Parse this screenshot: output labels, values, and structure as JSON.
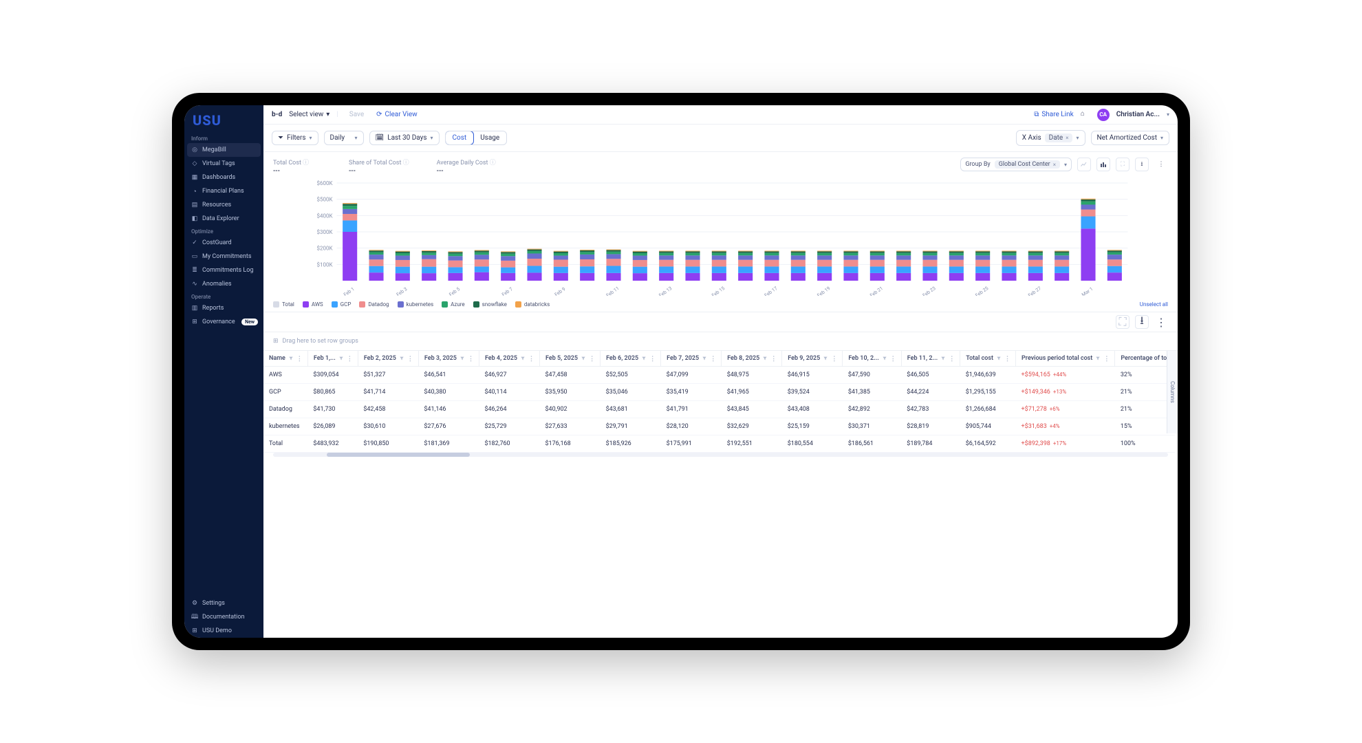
{
  "brand": "USU",
  "topbar": {
    "select_view": "Select view",
    "save": "Save",
    "clear_view": "Clear View",
    "share_link": "Share Link",
    "user_initials": "CA",
    "user_name": "Christian Ac..."
  },
  "filters": {
    "filters_label": "Filters",
    "granularity": "Daily",
    "date_range": "Last 30 Days",
    "seg_cost": "Cost",
    "seg_usage": "Usage",
    "xaxis_label": "X Axis",
    "xaxis_value": "Date",
    "yaxis_value": "Net Amortized Cost"
  },
  "metrics": {
    "total_cost_label": "Total Cost",
    "total_cost_value": "---",
    "share_label": "Share of Total Cost",
    "share_value": "---",
    "avg_label": "Average Daily Cost",
    "avg_value": "---",
    "group_by_label": "Group By",
    "group_by_value": "Global Cost Center"
  },
  "chart": {
    "type": "stacked-bar",
    "y_ticks": [
      "$600K",
      "$500K",
      "$400K",
      "$300K",
      "$200K",
      "$100K"
    ],
    "y_max": 600,
    "bar_width": 0.55,
    "background_color": "#ffffff",
    "grid_color": "#eef1f7",
    "axis_label_color": "#8892ad",
    "axis_fontsize": 8,
    "series": [
      {
        "key": "Total",
        "color": "#d7dbe6"
      },
      {
        "key": "AWS",
        "color": "#8e3ef2"
      },
      {
        "key": "GCP",
        "color": "#3aa3ff"
      },
      {
        "key": "Datadog",
        "color": "#f08d8d"
      },
      {
        "key": "kubernetes",
        "color": "#6a6fcf"
      },
      {
        "key": "Azure",
        "color": "#2aa36b"
      },
      {
        "key": "snowflake",
        "color": "#1e6b4b"
      },
      {
        "key": "databricks",
        "color": "#f2a24a"
      }
    ],
    "x_labels": [
      "Feb 1",
      "",
      "Feb 3",
      "",
      "Feb 5",
      "",
      "Feb 7",
      "",
      "Feb 9",
      "",
      "Feb 11",
      "",
      "Feb 13",
      "",
      "Feb 15",
      "",
      "Feb 17",
      "",
      "Feb 19",
      "",
      "Feb 21",
      "",
      "Feb 23",
      "",
      "Feb 25",
      "",
      "Feb 27",
      "",
      "Mar 1",
      ""
    ],
    "stacks": [
      {
        "AWS": 300,
        "GCP": 70,
        "Datadog": 40,
        "kubernetes": 30,
        "Azure": 20,
        "snowflake": 12,
        "databricks": 5
      },
      {
        "AWS": 50,
        "GCP": 40,
        "Datadog": 40,
        "kubernetes": 30,
        "Azure": 15,
        "snowflake": 10,
        "databricks": 4
      },
      {
        "AWS": 46,
        "GCP": 40,
        "Datadog": 41,
        "kubernetes": 27,
        "Azure": 15,
        "snowflake": 10,
        "databricks": 4
      },
      {
        "AWS": 46,
        "GCP": 40,
        "Datadog": 46,
        "kubernetes": 25,
        "Azure": 15,
        "snowflake": 10,
        "databricks": 4
      },
      {
        "AWS": 47,
        "GCP": 36,
        "Datadog": 41,
        "kubernetes": 27,
        "Azure": 15,
        "snowflake": 10,
        "databricks": 4
      },
      {
        "AWS": 52,
        "GCP": 35,
        "Datadog": 43,
        "kubernetes": 29,
        "Azure": 15,
        "snowflake": 10,
        "databricks": 4
      },
      {
        "AWS": 47,
        "GCP": 35,
        "Datadog": 41,
        "kubernetes": 28,
        "Azure": 15,
        "snowflake": 10,
        "databricks": 4
      },
      {
        "AWS": 49,
        "GCP": 42,
        "Datadog": 44,
        "kubernetes": 32,
        "Azure": 15,
        "snowflake": 10,
        "databricks": 4
      },
      {
        "AWS": 47,
        "GCP": 39,
        "Datadog": 43,
        "kubernetes": 25,
        "Azure": 15,
        "snowflake": 10,
        "databricks": 4
      },
      {
        "AWS": 47,
        "GCP": 41,
        "Datadog": 43,
        "kubernetes": 30,
        "Azure": 15,
        "snowflake": 10,
        "databricks": 4
      },
      {
        "AWS": 47,
        "GCP": 44,
        "Datadog": 43,
        "kubernetes": 29,
        "Azure": 15,
        "snowflake": 10,
        "databricks": 4
      },
      {
        "AWS": 46,
        "GCP": 40,
        "Datadog": 41,
        "kubernetes": 27,
        "Azure": 15,
        "snowflake": 10,
        "databricks": 4
      },
      {
        "AWS": 47,
        "GCP": 40,
        "Datadog": 41,
        "kubernetes": 27,
        "Azure": 15,
        "snowflake": 10,
        "databricks": 4
      },
      {
        "AWS": 47,
        "GCP": 40,
        "Datadog": 41,
        "kubernetes": 27,
        "Azure": 15,
        "snowflake": 10,
        "databricks": 4
      },
      {
        "AWS": 47,
        "GCP": 40,
        "Datadog": 41,
        "kubernetes": 27,
        "Azure": 15,
        "snowflake": 10,
        "databricks": 4
      },
      {
        "AWS": 47,
        "GCP": 40,
        "Datadog": 41,
        "kubernetes": 27,
        "Azure": 15,
        "snowflake": 10,
        "databricks": 4
      },
      {
        "AWS": 47,
        "GCP": 40,
        "Datadog": 41,
        "kubernetes": 27,
        "Azure": 15,
        "snowflake": 10,
        "databricks": 4
      },
      {
        "AWS": 47,
        "GCP": 40,
        "Datadog": 41,
        "kubernetes": 27,
        "Azure": 15,
        "snowflake": 10,
        "databricks": 4
      },
      {
        "AWS": 47,
        "GCP": 40,
        "Datadog": 41,
        "kubernetes": 27,
        "Azure": 15,
        "snowflake": 10,
        "databricks": 4
      },
      {
        "AWS": 47,
        "GCP": 40,
        "Datadog": 41,
        "kubernetes": 27,
        "Azure": 15,
        "snowflake": 10,
        "databricks": 4
      },
      {
        "AWS": 47,
        "GCP": 40,
        "Datadog": 41,
        "kubernetes": 27,
        "Azure": 15,
        "snowflake": 10,
        "databricks": 4
      },
      {
        "AWS": 47,
        "GCP": 40,
        "Datadog": 41,
        "kubernetes": 27,
        "Azure": 15,
        "snowflake": 10,
        "databricks": 4
      },
      {
        "AWS": 47,
        "GCP": 40,
        "Datadog": 41,
        "kubernetes": 27,
        "Azure": 15,
        "snowflake": 10,
        "databricks": 4
      },
      {
        "AWS": 47,
        "GCP": 40,
        "Datadog": 41,
        "kubernetes": 27,
        "Azure": 15,
        "snowflake": 10,
        "databricks": 4
      },
      {
        "AWS": 47,
        "GCP": 40,
        "Datadog": 41,
        "kubernetes": 27,
        "Azure": 15,
        "snowflake": 10,
        "databricks": 4
      },
      {
        "AWS": 47,
        "GCP": 40,
        "Datadog": 41,
        "kubernetes": 27,
        "Azure": 15,
        "snowflake": 10,
        "databricks": 4
      },
      {
        "AWS": 47,
        "GCP": 40,
        "Datadog": 41,
        "kubernetes": 27,
        "Axis": 0,
        "Azure": 15,
        "snowflake": 10,
        "databricks": 4
      },
      {
        "AWS": 47,
        "GCP": 40,
        "Datadog": 41,
        "kubernetes": 27,
        "Azure": 15,
        "snowflake": 10,
        "databricks": 4
      },
      {
        "AWS": 320,
        "GCP": 75,
        "Datadog": 42,
        "kubernetes": 30,
        "Azure": 20,
        "snowflake": 12,
        "databricks": 5
      },
      {
        "AWS": 50,
        "GCP": 40,
        "Datadog": 40,
        "kubernetes": 30,
        "Azure": 15,
        "snowflake": 10,
        "databricks": 4
      }
    ],
    "unselect_label": "Unselect all"
  },
  "table": {
    "drag_hint": "Drag here to set row groups",
    "columns_tab": "Columns",
    "columns": [
      "Name",
      "Feb 1,...",
      "Feb 2, 2025",
      "Feb 3, 2025",
      "Feb 4, 2025",
      "Feb 5, 2025",
      "Feb 6, 2025",
      "Feb 7, 2025",
      "Feb 8, 2025",
      "Feb 9, 2025",
      "Feb 10, 2...",
      "Feb 11, 2...",
      "Total cost",
      "Previous period total cost",
      "Percentage of total cost"
    ],
    "rows": [
      {
        "name": "AWS",
        "cells": [
          "$309,054",
          "$51,327",
          "$46,541",
          "$46,927",
          "$47,458",
          "$52,505",
          "$47,099",
          "$48,975",
          "$46,915",
          "$47,590",
          "$46,505"
        ],
        "total": "$1,946,639",
        "prev": "+$594,165",
        "prev_pct": "+44%",
        "pct": "32%"
      },
      {
        "name": "GCP",
        "cells": [
          "$80,865",
          "$41,714",
          "$40,380",
          "$40,114",
          "$35,950",
          "$35,046",
          "$35,419",
          "$41,965",
          "$39,524",
          "$41,385",
          "$44,224"
        ],
        "total": "$1,295,155",
        "prev": "+$149,346",
        "prev_pct": "+13%",
        "pct": "21%"
      },
      {
        "name": "Datadog",
        "cells": [
          "$41,730",
          "$42,458",
          "$41,146",
          "$46,264",
          "$40,902",
          "$43,681",
          "$41,791",
          "$43,845",
          "$43,408",
          "$42,892",
          "$42,783"
        ],
        "total": "$1,266,684",
        "prev": "+$71,278",
        "prev_pct": "+6%",
        "pct": "21%"
      },
      {
        "name": "kubernetes",
        "cells": [
          "$26,089",
          "$30,610",
          "$27,676",
          "$25,729",
          "$27,633",
          "$29,791",
          "$28,120",
          "$32,629",
          "$25,159",
          "$30,371",
          "$28,819"
        ],
        "total": "$905,744",
        "prev": "+$31,683",
        "prev_pct": "+4%",
        "pct": "15%"
      },
      {
        "name": "Total",
        "cells": [
          "$483,932",
          "$190,850",
          "$181,369",
          "$182,760",
          "$176,168",
          "$185,926",
          "$175,991",
          "$192,551",
          "$180,554",
          "$186,561",
          "$189,784"
        ],
        "total": "$6,164,592",
        "prev": "+$892,398",
        "prev_pct": "+17%",
        "pct": "100%"
      }
    ]
  },
  "sidebar": {
    "sections": [
      {
        "title": "Inform",
        "items": [
          {
            "label": "MegaBill",
            "icon": "◎",
            "active": true
          },
          {
            "label": "Virtual Tags",
            "icon": "◇"
          },
          {
            "label": "Dashboards",
            "icon": "▦"
          },
          {
            "label": "Financial Plans",
            "icon": "◔"
          },
          {
            "label": "Resources",
            "icon": "▤"
          },
          {
            "label": "Data Explorer",
            "icon": "◧"
          }
        ]
      },
      {
        "title": "Optimize",
        "items": [
          {
            "label": "CostGuard",
            "icon": "✓"
          },
          {
            "label": "My Commitments",
            "icon": "▭"
          },
          {
            "label": "Commitments Log",
            "icon": "≣"
          },
          {
            "label": "Anomalies",
            "icon": "∿"
          }
        ]
      },
      {
        "title": "Operate",
        "items": [
          {
            "label": "Reports",
            "icon": "▥"
          },
          {
            "label": "Governance",
            "icon": "⊞",
            "badge": "New"
          }
        ]
      }
    ],
    "footer": [
      {
        "label": "Settings",
        "icon": "⚙"
      },
      {
        "label": "Documentation",
        "icon": "🕮"
      },
      {
        "label": "USU Demo",
        "icon": "⊞"
      }
    ]
  }
}
